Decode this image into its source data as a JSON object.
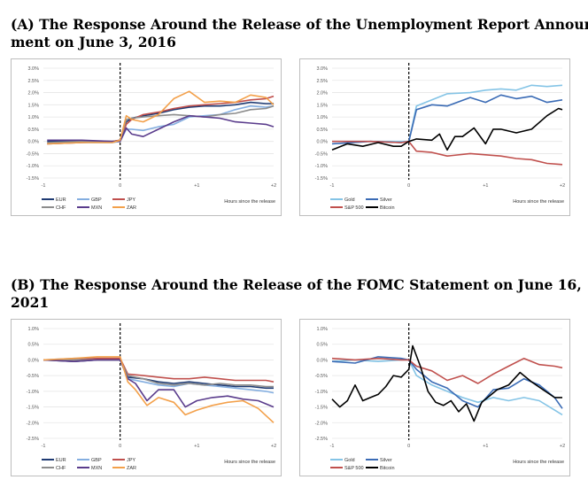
{
  "headings": {
    "a_line1": "(A) The Response Around the Release of the Unemployment Report Announce-",
    "a_line2": "ment on June 3, 2016",
    "b_line1": "(B) The Response Around the Release of the FOMC Statement on June 16,",
    "b_line2": "2021"
  },
  "chart_data": [
    {
      "id": "a_fx",
      "type": "line",
      "xlabel": "Hours since the release",
      "xlim": [
        -1,
        2
      ],
      "xticks": [
        "-1",
        "0",
        "+1",
        "+2"
      ],
      "yticks": [
        "3.0%",
        "2.5%",
        "2.0%",
        "1.5%",
        "1.0%",
        "0.5%",
        "0.0%",
        "-0.5%",
        "-1.0%",
        "-1.5%"
      ],
      "ylim": [
        -1.5,
        3.0
      ],
      "series": [
        {
          "name": "EUR",
          "color": "#1f3b73",
          "x": [
            -0.95,
            -0.5,
            -0.1,
            0,
            0.08,
            0.15,
            0.3,
            0.5,
            0.7,
            0.9,
            1.1,
            1.3,
            1.5,
            1.7,
            1.9,
            2.0
          ],
          "values": [
            0.0,
            0.0,
            0.0,
            0.05,
            0.8,
            0.95,
            1.05,
            1.15,
            1.3,
            1.4,
            1.45,
            1.45,
            1.5,
            1.6,
            1.55,
            1.55
          ]
        },
        {
          "name": "GBP",
          "color": "#84aee0",
          "x": [
            -0.95,
            -0.5,
            -0.1,
            0,
            0.08,
            0.15,
            0.3,
            0.5,
            0.7,
            0.9,
            1.1,
            1.3,
            1.5,
            1.7,
            1.9,
            2.0
          ],
          "values": [
            -0.1,
            -0.05,
            -0.05,
            0.0,
            0.5,
            0.5,
            0.45,
            0.6,
            0.7,
            1.0,
            1.05,
            1.1,
            1.3,
            1.45,
            1.4,
            1.45
          ]
        },
        {
          "name": "JPY",
          "color": "#c0504d",
          "x": [
            -0.95,
            -0.5,
            -0.1,
            0,
            0.08,
            0.15,
            0.3,
            0.5,
            0.7,
            0.9,
            1.1,
            1.3,
            1.5,
            1.7,
            1.9,
            2.0
          ],
          "values": [
            -0.1,
            -0.05,
            0.0,
            0.05,
            0.7,
            0.9,
            1.1,
            1.2,
            1.35,
            1.45,
            1.5,
            1.55,
            1.6,
            1.7,
            1.75,
            1.85
          ]
        },
        {
          "name": "CHF",
          "color": "#8c8c8c",
          "x": [
            -0.95,
            -0.5,
            -0.1,
            0,
            0.08,
            0.15,
            0.3,
            0.5,
            0.7,
            0.9,
            1.1,
            1.3,
            1.5,
            1.7,
            1.9,
            2.0
          ],
          "values": [
            -0.05,
            0.0,
            0.0,
            0.0,
            0.9,
            0.95,
            1.0,
            1.05,
            1.1,
            1.05,
            1.0,
            1.1,
            1.15,
            1.3,
            1.35,
            1.45
          ]
        },
        {
          "name": "MXN",
          "color": "#5a3c8c",
          "x": [
            -0.95,
            -0.5,
            -0.1,
            0,
            0.08,
            0.15,
            0.3,
            0.5,
            0.7,
            0.9,
            1.1,
            1.3,
            1.5,
            1.7,
            1.9,
            2.0
          ],
          "values": [
            0.05,
            0.05,
            0.0,
            0.0,
            0.55,
            0.3,
            0.2,
            0.5,
            0.8,
            1.05,
            1.0,
            0.95,
            0.8,
            0.75,
            0.7,
            0.6
          ]
        },
        {
          "name": "ZAR",
          "color": "#f3a04a",
          "x": [
            -0.95,
            -0.5,
            -0.1,
            0,
            0.08,
            0.15,
            0.3,
            0.5,
            0.7,
            0.9,
            1.1,
            1.3,
            1.5,
            1.7,
            1.9,
            2.0
          ],
          "values": [
            -0.1,
            -0.05,
            -0.05,
            0.05,
            1.05,
            0.9,
            0.8,
            1.1,
            1.75,
            2.05,
            1.6,
            1.65,
            1.6,
            1.9,
            1.8,
            1.5
          ]
        }
      ]
    },
    {
      "id": "a_assets",
      "type": "line",
      "xlabel": "Hours since the release",
      "xlim": [
        -1,
        2
      ],
      "xticks": [
        "-1",
        "0",
        "+1",
        "+2"
      ],
      "yticks": [
        "3.0%",
        "2.5%",
        "2.0%",
        "1.5%",
        "1.0%",
        "0.5%",
        "0.0%",
        "-0.5%",
        "-1.0%",
        "-1.5%"
      ],
      "ylim": [
        -1.5,
        3.0
      ],
      "series": [
        {
          "name": "Gold",
          "color": "#84c4e6",
          "x": [
            -1,
            -0.5,
            -0.1,
            0,
            0.1,
            0.3,
            0.5,
            0.8,
            1.0,
            1.2,
            1.4,
            1.6,
            1.8,
            2.0
          ],
          "values": [
            0.0,
            0.0,
            0.0,
            0.0,
            1.45,
            1.7,
            1.95,
            2.0,
            2.1,
            2.15,
            2.1,
            2.3,
            2.25,
            2.3
          ]
        },
        {
          "name": "Silver",
          "color": "#3a6bb5",
          "x": [
            -1,
            -0.5,
            -0.1,
            0,
            0.1,
            0.3,
            0.5,
            0.8,
            1.0,
            1.2,
            1.4,
            1.6,
            1.8,
            2.0
          ],
          "values": [
            -0.1,
            0.0,
            -0.05,
            0.0,
            1.3,
            1.5,
            1.45,
            1.8,
            1.6,
            1.9,
            1.75,
            1.85,
            1.6,
            1.7
          ]
        },
        {
          "name": "S&P 500",
          "color": "#c0504d",
          "x": [
            -1,
            -0.5,
            -0.1,
            0,
            0.1,
            0.3,
            0.5,
            0.8,
            1.0,
            1.2,
            1.4,
            1.6,
            1.8,
            2.0
          ],
          "values": [
            0.0,
            0.0,
            -0.05,
            0.0,
            -0.4,
            -0.45,
            -0.6,
            -0.5,
            -0.55,
            -0.6,
            -0.7,
            -0.75,
            -0.9,
            -0.95
          ]
        },
        {
          "name": "Bitcoin",
          "color": "#000000",
          "x": [
            -1,
            -0.8,
            -0.6,
            -0.4,
            -0.2,
            -0.1,
            0,
            0.1,
            0.3,
            0.4,
            0.5,
            0.6,
            0.7,
            0.85,
            1.0,
            1.1,
            1.2,
            1.4,
            1.6,
            1.8,
            1.95,
            2.0
          ],
          "values": [
            -0.35,
            -0.1,
            -0.2,
            -0.05,
            -0.2,
            -0.2,
            0.0,
            0.1,
            0.05,
            0.3,
            -0.35,
            0.2,
            0.2,
            0.55,
            -0.1,
            0.5,
            0.5,
            0.35,
            0.5,
            1.05,
            1.35,
            1.3
          ]
        }
      ]
    },
    {
      "id": "b_fx",
      "type": "line",
      "xlabel": "Hours since the release",
      "xlim": [
        -1,
        2
      ],
      "xticks": [
        "-1",
        "0",
        "+1",
        "+2"
      ],
      "yticks": [
        "1.0%",
        "0.5%",
        "0.0%",
        "-0.5%",
        "-1.0%",
        "-1.5%",
        "-2.0%",
        "-2.5%"
      ],
      "ylim": [
        -2.5,
        1.0
      ],
      "series": [
        {
          "name": "EUR",
          "color": "#1f3b73",
          "x": [
            -1,
            -0.6,
            -0.3,
            0,
            0.1,
            0.3,
            0.5,
            0.7,
            0.9,
            1.1,
            1.3,
            1.5,
            1.7,
            1.9,
            2.0
          ],
          "values": [
            0.0,
            -0.05,
            0.0,
            0.0,
            -0.55,
            -0.6,
            -0.7,
            -0.75,
            -0.7,
            -0.75,
            -0.8,
            -0.85,
            -0.85,
            -0.9,
            -0.9
          ]
        },
        {
          "name": "GBP",
          "color": "#84aee0",
          "x": [
            -1,
            -0.6,
            -0.3,
            0,
            0.1,
            0.3,
            0.5,
            0.7,
            0.9,
            1.1,
            1.3,
            1.5,
            1.7,
            1.9,
            2.0
          ],
          "values": [
            0.0,
            0.05,
            0.05,
            0.05,
            -0.6,
            -0.7,
            -0.8,
            -0.85,
            -0.75,
            -0.8,
            -0.85,
            -0.9,
            -0.95,
            -1.0,
            -1.05
          ]
        },
        {
          "name": "JPY",
          "color": "#c0504d",
          "x": [
            -1,
            -0.6,
            -0.3,
            0,
            0.1,
            0.3,
            0.5,
            0.7,
            0.9,
            1.1,
            1.3,
            1.5,
            1.7,
            1.9,
            2.0
          ],
          "values": [
            0.0,
            0.0,
            0.05,
            0.05,
            -0.45,
            -0.5,
            -0.55,
            -0.6,
            -0.6,
            -0.55,
            -0.6,
            -0.65,
            -0.65,
            -0.65,
            -0.7
          ]
        },
        {
          "name": "CHF",
          "color": "#8c8c8c",
          "x": [
            -1,
            -0.6,
            -0.3,
            0,
            0.1,
            0.3,
            0.5,
            0.7,
            0.9,
            1.1,
            1.3,
            1.5,
            1.7,
            1.9,
            2.0
          ],
          "values": [
            0.0,
            0.0,
            0.0,
            0.0,
            -0.5,
            -0.6,
            -0.75,
            -0.8,
            -0.75,
            -0.8,
            -0.75,
            -0.8,
            -0.8,
            -0.85,
            -0.85
          ]
        },
        {
          "name": "MXN",
          "color": "#5a3c8c",
          "x": [
            -1,
            -0.6,
            -0.3,
            0,
            0.1,
            0.2,
            0.35,
            0.5,
            0.7,
            0.85,
            1.0,
            1.2,
            1.4,
            1.6,
            1.8,
            2.0
          ],
          "values": [
            0.0,
            -0.05,
            0.0,
            0.0,
            -0.6,
            -0.75,
            -1.3,
            -0.95,
            -0.95,
            -1.5,
            -1.3,
            -1.2,
            -1.15,
            -1.25,
            -1.3,
            -1.5
          ]
        },
        {
          "name": "ZAR",
          "color": "#f3a04a",
          "x": [
            -1,
            -0.6,
            -0.3,
            0,
            0.1,
            0.2,
            0.35,
            0.5,
            0.7,
            0.85,
            1.0,
            1.2,
            1.4,
            1.6,
            1.8,
            2.0
          ],
          "values": [
            0.0,
            0.05,
            0.1,
            0.1,
            -0.7,
            -0.95,
            -1.45,
            -1.2,
            -1.35,
            -1.75,
            -1.6,
            -1.45,
            -1.35,
            -1.3,
            -1.55,
            -2.0
          ]
        }
      ]
    },
    {
      "id": "b_assets",
      "type": "line",
      "xlabel": "Hours since the release",
      "xlim": [
        -1,
        2
      ],
      "xticks": [
        "-1",
        "0",
        "+1",
        "+2"
      ],
      "yticks": [
        "1.0%",
        "0.5%",
        "0.0%",
        "-0.5%",
        "-1.0%",
        "-1.5%",
        "-2.0%",
        "-2.5%"
      ],
      "ylim": [
        -2.5,
        1.0
      ],
      "series": [
        {
          "name": "Gold",
          "color": "#84c4e6",
          "x": [
            -1,
            -0.7,
            -0.4,
            -0.1,
            0,
            0.1,
            0.3,
            0.5,
            0.7,
            0.9,
            1.1,
            1.3,
            1.5,
            1.7,
            1.9,
            2.0
          ],
          "values": [
            -0.05,
            0.0,
            -0.05,
            0.0,
            0.0,
            -0.5,
            -0.8,
            -1.0,
            -1.2,
            -1.35,
            -1.2,
            -1.3,
            -1.2,
            -1.3,
            -1.6,
            -1.75
          ]
        },
        {
          "name": "Silver",
          "color": "#3a6bb5",
          "x": [
            -1,
            -0.7,
            -0.4,
            -0.1,
            0,
            0.1,
            0.3,
            0.5,
            0.7,
            0.9,
            1.1,
            1.3,
            1.5,
            1.7,
            1.9,
            2.0
          ],
          "values": [
            -0.05,
            -0.1,
            0.1,
            0.05,
            0.0,
            -0.3,
            -0.7,
            -0.9,
            -1.3,
            -1.5,
            -0.95,
            -0.9,
            -0.6,
            -0.8,
            -1.2,
            -1.55
          ]
        },
        {
          "name": "S&P 500",
          "color": "#c0504d",
          "x": [
            -1,
            -0.7,
            -0.4,
            -0.1,
            0,
            0.1,
            0.3,
            0.5,
            0.7,
            0.9,
            1.1,
            1.3,
            1.5,
            1.7,
            1.9,
            2.0
          ],
          "values": [
            0.05,
            0.0,
            0.05,
            0.0,
            0.0,
            -0.2,
            -0.35,
            -0.65,
            -0.5,
            -0.75,
            -0.45,
            -0.2,
            0.05,
            -0.15,
            -0.2,
            -0.25
          ]
        },
        {
          "name": "Bitcoin",
          "color": "#000000",
          "x": [
            -1,
            -0.9,
            -0.8,
            -0.7,
            -0.6,
            -0.5,
            -0.4,
            -0.3,
            -0.2,
            -0.1,
            0,
            0.05,
            0.15,
            0.25,
            0.35,
            0.45,
            0.55,
            0.65,
            0.75,
            0.85,
            0.95,
            1.05,
            1.15,
            1.3,
            1.45,
            1.6,
            1.75,
            1.9,
            2.0
          ],
          "values": [
            -1.25,
            -1.5,
            -1.3,
            -0.8,
            -1.3,
            -1.2,
            -1.1,
            -0.85,
            -0.5,
            -0.55,
            -0.3,
            0.45,
            -0.2,
            -1.0,
            -1.35,
            -1.45,
            -1.3,
            -1.65,
            -1.4,
            -1.95,
            -1.35,
            -1.15,
            -0.95,
            -0.8,
            -0.4,
            -0.7,
            -0.95,
            -1.2,
            -1.2
          ]
        }
      ]
    }
  ]
}
